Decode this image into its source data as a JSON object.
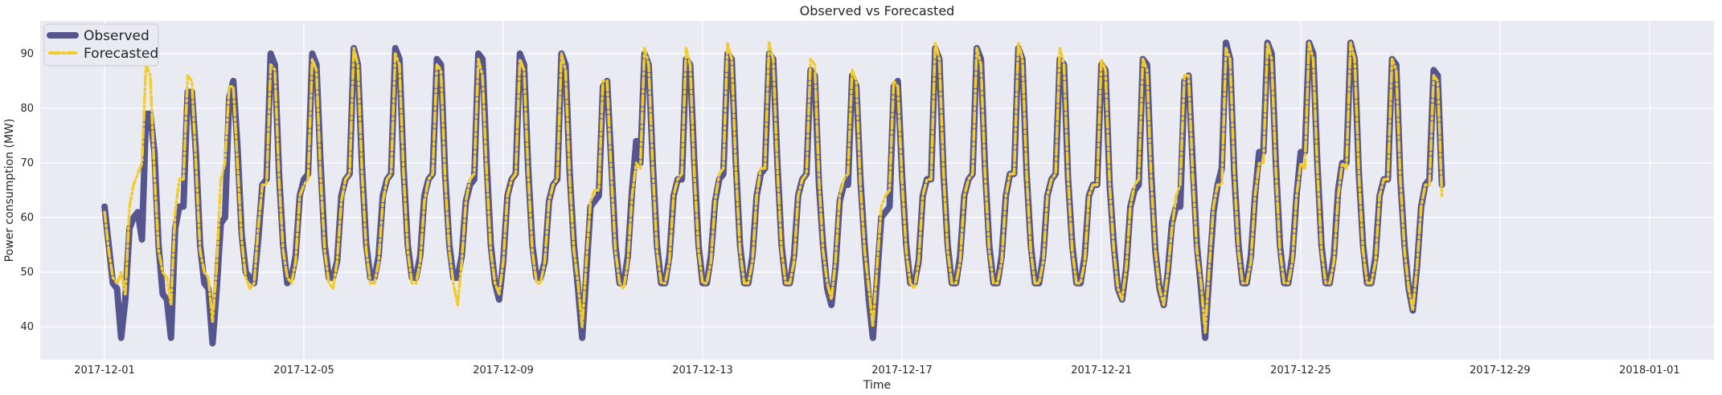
{
  "chart_data": {
    "type": "line",
    "title": "Observed vs Forecasted",
    "xlabel": "Time",
    "ylabel": "Power consumption (MW)",
    "x_tick_labels": [
      "2017-12-01",
      "2017-12-05",
      "2017-12-09",
      "2017-12-13",
      "2017-12-17",
      "2017-12-21",
      "2017-12-25",
      "2017-12-29",
      "2018-01-01"
    ],
    "y_tick_labels": [
      "40",
      "50",
      "60",
      "70",
      "80",
      "90"
    ],
    "xlim": [
      "2017-11-29T17:00",
      "2018-01-02T07:00"
    ],
    "ylim": [
      34,
      96
    ],
    "grid": true,
    "legend_position": "top-left",
    "colors": {
      "observed": "#55558f",
      "forecasted": "#f2cc2d",
      "background": "#eaeaf2",
      "grid": "#ffffff"
    },
    "x_start": "2017-12-01T00:00",
    "x_step_hours": 2,
    "series": [
      {
        "name": "Observed",
        "style": "solid",
        "values": [
          62,
          55,
          48,
          47,
          38,
          45,
          58,
          60,
          61,
          56,
          79,
          79,
          72,
          55,
          46,
          45,
          38,
          58,
          62,
          62,
          83,
          83,
          72,
          55,
          48,
          47,
          37,
          47,
          59,
          60,
          82,
          85,
          73,
          57,
          50,
          49,
          48,
          56,
          66,
          67,
          90,
          88,
          68,
          55,
          48,
          49,
          53,
          64,
          67,
          68,
          90,
          88,
          70,
          55,
          49,
          49,
          52,
          64,
          67,
          68,
          91,
          88,
          69,
          55,
          49,
          49,
          53,
          64,
          67,
          68,
          91,
          89,
          69,
          55,
          49,
          49,
          53,
          64,
          67,
          68,
          89,
          88,
          68,
          55,
          49,
          49,
          53,
          63,
          66,
          67,
          90,
          89,
          70,
          55,
          48,
          45,
          52,
          64,
          67,
          68,
          90,
          88,
          69,
          55,
          49,
          49,
          52,
          63,
          66,
          67,
          90,
          88,
          68,
          55,
          47,
          38,
          50,
          62,
          63,
          64,
          84,
          85,
          70,
          55,
          48,
          48,
          53,
          65,
          74,
          70,
          90,
          88,
          70,
          55,
          48,
          48,
          53,
          64,
          67,
          67,
          89,
          88,
          70,
          55,
          48,
          48,
          53,
          63,
          67,
          68,
          90,
          89,
          70,
          55,
          48,
          48,
          53,
          64,
          68,
          69,
          90,
          89,
          70,
          55,
          48,
          48,
          53,
          64,
          67,
          68,
          87,
          86,
          66,
          55,
          47,
          44,
          51,
          63,
          66,
          66,
          86,
          84,
          67,
          55,
          45,
          38,
          49,
          60,
          61,
          62,
          84,
          85,
          68,
          55,
          48,
          48,
          52,
          64,
          67,
          67,
          91,
          89,
          68,
          55,
          48,
          48,
          53,
          64,
          67,
          68,
          91,
          89,
          69,
          55,
          48,
          48,
          53,
          64,
          68,
          68,
          91,
          89,
          68,
          55,
          48,
          48,
          53,
          64,
          67,
          68,
          89,
          88,
          67,
          55,
          48,
          48,
          53,
          64,
          66,
          66,
          88,
          87,
          66,
          55,
          47,
          45,
          51,
          62,
          65,
          66,
          89,
          88,
          68,
          54,
          47,
          44,
          50,
          59,
          62,
          62,
          85,
          86,
          70,
          55,
          47,
          38,
          50,
          61,
          66,
          69,
          92,
          89,
          68,
          55,
          48,
          48,
          53,
          64,
          72,
          72,
          92,
          90,
          70,
          55,
          48,
          48,
          53,
          64,
          72,
          72,
          92,
          90,
          70,
          55,
          48,
          48,
          53,
          65,
          70,
          70,
          92,
          89,
          68,
          55,
          48,
          48,
          53,
          64,
          67,
          67,
          89,
          88,
          67,
          55,
          47,
          43,
          51,
          62,
          66,
          67,
          87,
          86,
          66
        ]
      },
      {
        "name": "Forecasted",
        "style": "dash-dot",
        "values": [
          61,
          54,
          49,
          48,
          50,
          46,
          62,
          66,
          68,
          70,
          88,
          86,
          68,
          54,
          50,
          49,
          44,
          61,
          67,
          67,
          86,
          85,
          70,
          54,
          50,
          49,
          41,
          51,
          67,
          70,
          84,
          84,
          70,
          56,
          49,
          47,
          48,
          58,
          66,
          66,
          88,
          87,
          67,
          54,
          49,
          48,
          52,
          64,
          66,
          67,
          89,
          87,
          68,
          54,
          48,
          47,
          52,
          63,
          67,
          68,
          91,
          88,
          68,
          54,
          48,
          48,
          52,
          63,
          67,
          68,
          90,
          88,
          68,
          54,
          48,
          48,
          52,
          63,
          67,
          68,
          88,
          87,
          67,
          54,
          48,
          44,
          52,
          63,
          67,
          68,
          89,
          86,
          68,
          54,
          48,
          46,
          52,
          64,
          67,
          68,
          89,
          87,
          68,
          54,
          48,
          48,
          52,
          63,
          66,
          67,
          90,
          87,
          67,
          54,
          48,
          40,
          52,
          63,
          65,
          65,
          85,
          85,
          68,
          54,
          48,
          47,
          52,
          64,
          70,
          69,
          91,
          88,
          69,
          54,
          48,
          48,
          52,
          64,
          67,
          68,
          91,
          88,
          68,
          54,
          48,
          48,
          52,
          63,
          68,
          69,
          92,
          89,
          69,
          54,
          48,
          48,
          52,
          64,
          69,
          69,
          92,
          89,
          69,
          54,
          48,
          48,
          52,
          64,
          67,
          68,
          89,
          88,
          67,
          54,
          48,
          45,
          52,
          64,
          67,
          68,
          87,
          85,
          66,
          54,
          47,
          40,
          51,
          62,
          64,
          65,
          85,
          84,
          67,
          54,
          48,
          47,
          52,
          64,
          67,
          67,
          92,
          89,
          68,
          54,
          48,
          48,
          52,
          64,
          67,
          68,
          91,
          88,
          68,
          54,
          48,
          48,
          52,
          64,
          68,
          68,
          92,
          89,
          68,
          54,
          48,
          48,
          52,
          64,
          67,
          68,
          91,
          88,
          67,
          54,
          48,
          48,
          52,
          64,
          66,
          66,
          89,
          87,
          66,
          54,
          47,
          45,
          51,
          62,
          66,
          67,
          89,
          87,
          67,
          54,
          47,
          44,
          50,
          58,
          64,
          66,
          86,
          86,
          68,
          54,
          48,
          39,
          51,
          62,
          66,
          66,
          91,
          89,
          68,
          54,
          48,
          48,
          52,
          64,
          70,
          70,
          92,
          89,
          69,
          54,
          48,
          48,
          52,
          64,
          70,
          69,
          92,
          89,
          69,
          54,
          48,
          48,
          52,
          64,
          70,
          69,
          92,
          89,
          68,
          54,
          48,
          48,
          52,
          64,
          67,
          67,
          89,
          87,
          67,
          54,
          47,
          43,
          51,
          62,
          66,
          66,
          86,
          85,
          64
        ]
      }
    ]
  }
}
